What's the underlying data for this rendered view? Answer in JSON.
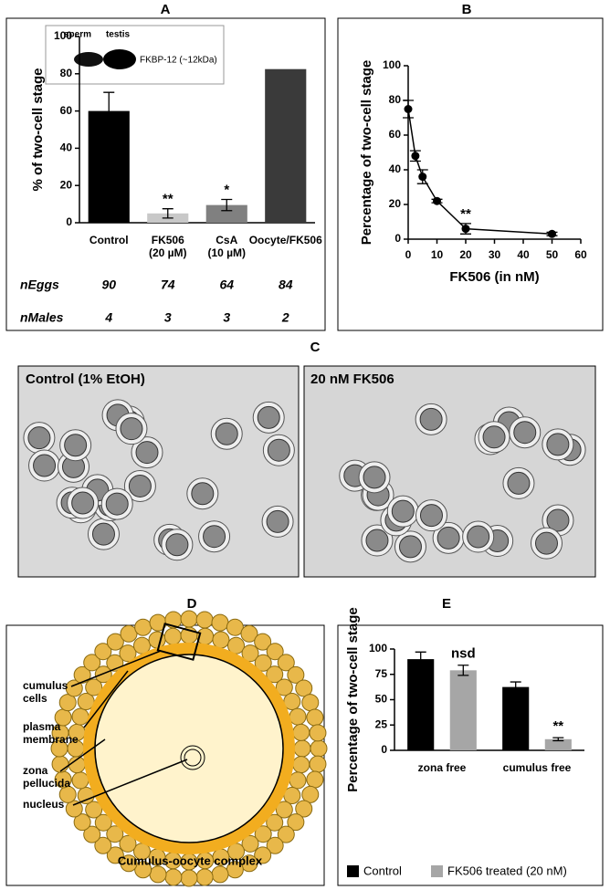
{
  "chart_data": [
    {
      "type": "bar",
      "label": "A",
      "ylabel": "% of two-cell stage",
      "categories": [
        "Control",
        "FK506\n(20 µM)",
        "CsA\n(10 µM)",
        "Oocyte/FK506"
      ],
      "values": [
        60,
        5,
        9.5,
        82.5
      ],
      "errors": [
        10,
        2.5,
        3,
        null
      ],
      "colors": [
        "#000000",
        "#c8c8c8",
        "#808080",
        "#3a3a3a"
      ],
      "annotations": [
        null,
        "**",
        "*",
        null
      ],
      "ylim": [
        0,
        100
      ],
      "yticks": [
        0,
        20,
        40,
        60,
        80,
        100
      ],
      "inset": {
        "lanes": [
          "sperm",
          "testis"
        ],
        "label": "FKBP-12 (~12kDa)"
      },
      "table": [
        {
          "name": "nEggs",
          "values": [
            90,
            74,
            64,
            84
          ]
        },
        {
          "name": "nMales",
          "values": [
            4,
            3,
            3,
            2
          ]
        }
      ]
    },
    {
      "type": "line",
      "label": "B",
      "ylabel": "Percentage of two-cell stage",
      "xlabel": "FK506 (in nM)",
      "x": [
        0,
        2.5,
        5,
        10,
        20,
        50
      ],
      "values": [
        75,
        48,
        36,
        22,
        6,
        3
      ],
      "errors": [
        5,
        3,
        4,
        1,
        3,
        1
      ],
      "annotations": [
        null,
        null,
        null,
        null,
        "**",
        null
      ],
      "color": "#000000",
      "xlim": [
        0,
        60
      ],
      "xticks": [
        0,
        10,
        20,
        30,
        40,
        50,
        60
      ],
      "ylim": [
        0,
        100
      ],
      "yticks": [
        0,
        20,
        40,
        60,
        80,
        100
      ]
    },
    {
      "type": "bar",
      "label": "E",
      "ylabel": "Percentage of two-cell stage",
      "categories": [
        "zona free",
        "cumulus free"
      ],
      "series": [
        {
          "name": "Control",
          "color": "#000000",
          "values": [
            90,
            62.5
          ],
          "errors": [
            7,
            5
          ],
          "annotations": [
            null,
            null
          ]
        },
        {
          "name": "FK506 treated (20 nM)",
          "color": "#a6a6a6",
          "values": [
            79,
            11
          ],
          "errors": [
            5,
            1.5
          ],
          "annotations": [
            "nsd",
            "**"
          ]
        }
      ],
      "ylim": [
        0,
        100
      ],
      "yticks": [
        0,
        25,
        50,
        75,
        100
      ]
    }
  ],
  "micrographs": {
    "label": "C",
    "panels": [
      "Control (1% EtOH)",
      "20 nM FK506"
    ]
  },
  "diagram": {
    "label": "D",
    "labels": [
      "cumulus\ncells",
      "plasma\nmembrane",
      "zona\npellucida",
      "nucleus"
    ],
    "caption": "Cumulus-oocyte complex"
  }
}
